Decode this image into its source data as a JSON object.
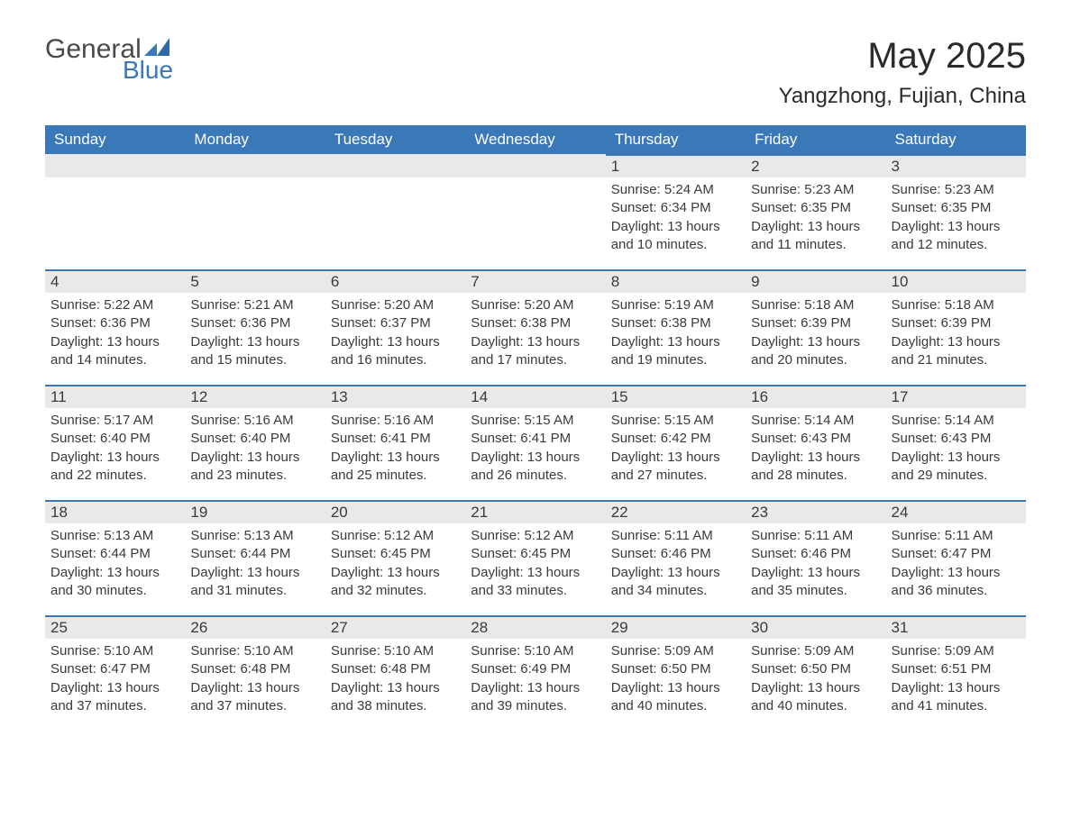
{
  "brand": {
    "part1": "General",
    "part2": "Blue",
    "text_color": "#4a4a4a",
    "accent_color": "#3a78b8"
  },
  "title": "May 2025",
  "location": "Yangzhong, Fujian, China",
  "colors": {
    "header_bg": "#3a78b8",
    "header_fg": "#ffffff",
    "daynum_bg": "#e9e9e9",
    "border_top": "#3a78b8",
    "body_bg": "#ffffff",
    "text": "#3a3a3a"
  },
  "fonts": {
    "title_size": 40,
    "location_size": 24,
    "weekday_size": 17,
    "body_size": 15
  },
  "weekdays": [
    "Sunday",
    "Monday",
    "Tuesday",
    "Wednesday",
    "Thursday",
    "Friday",
    "Saturday"
  ],
  "first_weekday_index": 4,
  "days": [
    {
      "n": 1,
      "sunrise": "5:24 AM",
      "sunset": "6:34 PM",
      "daylight": "13 hours and 10 minutes."
    },
    {
      "n": 2,
      "sunrise": "5:23 AM",
      "sunset": "6:35 PM",
      "daylight": "13 hours and 11 minutes."
    },
    {
      "n": 3,
      "sunrise": "5:23 AM",
      "sunset": "6:35 PM",
      "daylight": "13 hours and 12 minutes."
    },
    {
      "n": 4,
      "sunrise": "5:22 AM",
      "sunset": "6:36 PM",
      "daylight": "13 hours and 14 minutes."
    },
    {
      "n": 5,
      "sunrise": "5:21 AM",
      "sunset": "6:36 PM",
      "daylight": "13 hours and 15 minutes."
    },
    {
      "n": 6,
      "sunrise": "5:20 AM",
      "sunset": "6:37 PM",
      "daylight": "13 hours and 16 minutes."
    },
    {
      "n": 7,
      "sunrise": "5:20 AM",
      "sunset": "6:38 PM",
      "daylight": "13 hours and 17 minutes."
    },
    {
      "n": 8,
      "sunrise": "5:19 AM",
      "sunset": "6:38 PM",
      "daylight": "13 hours and 19 minutes."
    },
    {
      "n": 9,
      "sunrise": "5:18 AM",
      "sunset": "6:39 PM",
      "daylight": "13 hours and 20 minutes."
    },
    {
      "n": 10,
      "sunrise": "5:18 AM",
      "sunset": "6:39 PM",
      "daylight": "13 hours and 21 minutes."
    },
    {
      "n": 11,
      "sunrise": "5:17 AM",
      "sunset": "6:40 PM",
      "daylight": "13 hours and 22 minutes."
    },
    {
      "n": 12,
      "sunrise": "5:16 AM",
      "sunset": "6:40 PM",
      "daylight": "13 hours and 23 minutes."
    },
    {
      "n": 13,
      "sunrise": "5:16 AM",
      "sunset": "6:41 PM",
      "daylight": "13 hours and 25 minutes."
    },
    {
      "n": 14,
      "sunrise": "5:15 AM",
      "sunset": "6:41 PM",
      "daylight": "13 hours and 26 minutes."
    },
    {
      "n": 15,
      "sunrise": "5:15 AM",
      "sunset": "6:42 PM",
      "daylight": "13 hours and 27 minutes."
    },
    {
      "n": 16,
      "sunrise": "5:14 AM",
      "sunset": "6:43 PM",
      "daylight": "13 hours and 28 minutes."
    },
    {
      "n": 17,
      "sunrise": "5:14 AM",
      "sunset": "6:43 PM",
      "daylight": "13 hours and 29 minutes."
    },
    {
      "n": 18,
      "sunrise": "5:13 AM",
      "sunset": "6:44 PM",
      "daylight": "13 hours and 30 minutes."
    },
    {
      "n": 19,
      "sunrise": "5:13 AM",
      "sunset": "6:44 PM",
      "daylight": "13 hours and 31 minutes."
    },
    {
      "n": 20,
      "sunrise": "5:12 AM",
      "sunset": "6:45 PM",
      "daylight": "13 hours and 32 minutes."
    },
    {
      "n": 21,
      "sunrise": "5:12 AM",
      "sunset": "6:45 PM",
      "daylight": "13 hours and 33 minutes."
    },
    {
      "n": 22,
      "sunrise": "5:11 AM",
      "sunset": "6:46 PM",
      "daylight": "13 hours and 34 minutes."
    },
    {
      "n": 23,
      "sunrise": "5:11 AM",
      "sunset": "6:46 PM",
      "daylight": "13 hours and 35 minutes."
    },
    {
      "n": 24,
      "sunrise": "5:11 AM",
      "sunset": "6:47 PM",
      "daylight": "13 hours and 36 minutes."
    },
    {
      "n": 25,
      "sunrise": "5:10 AM",
      "sunset": "6:47 PM",
      "daylight": "13 hours and 37 minutes."
    },
    {
      "n": 26,
      "sunrise": "5:10 AM",
      "sunset": "6:48 PM",
      "daylight": "13 hours and 37 minutes."
    },
    {
      "n": 27,
      "sunrise": "5:10 AM",
      "sunset": "6:48 PM",
      "daylight": "13 hours and 38 minutes."
    },
    {
      "n": 28,
      "sunrise": "5:10 AM",
      "sunset": "6:49 PM",
      "daylight": "13 hours and 39 minutes."
    },
    {
      "n": 29,
      "sunrise": "5:09 AM",
      "sunset": "6:50 PM",
      "daylight": "13 hours and 40 minutes."
    },
    {
      "n": 30,
      "sunrise": "5:09 AM",
      "sunset": "6:50 PM",
      "daylight": "13 hours and 40 minutes."
    },
    {
      "n": 31,
      "sunrise": "5:09 AM",
      "sunset": "6:51 PM",
      "daylight": "13 hours and 41 minutes."
    }
  ],
  "labels": {
    "sunrise": "Sunrise:",
    "sunset": "Sunset:",
    "daylight": "Daylight:"
  }
}
